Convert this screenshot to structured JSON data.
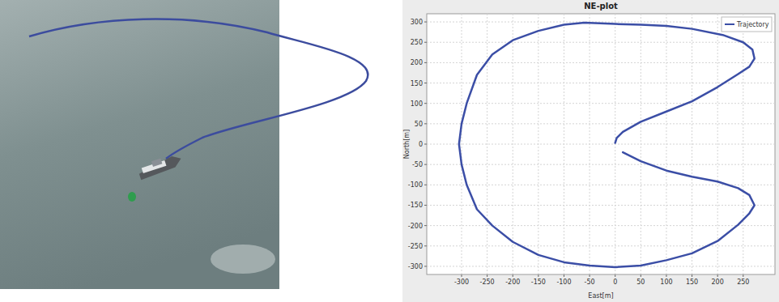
{
  "chart_data": {
    "type": "line",
    "title": "NE-plot",
    "x_label": "East[m]",
    "y_label": "North[m]",
    "x": [
      0,
      3,
      15,
      50,
      100,
      150,
      200,
      240,
      262,
      272,
      268,
      250,
      210,
      150,
      100,
      50,
      0,
      -60,
      -100,
      -150,
      -200,
      -240,
      -270,
      -290,
      -300,
      -305,
      -300,
      -290,
      -270,
      -240,
      -200,
      -150,
      -100,
      -50,
      0,
      50,
      100,
      150,
      200,
      240,
      262,
      272,
      262,
      240,
      200,
      150,
      100,
      50,
      15
    ],
    "series": [
      {
        "name": "Trajectory",
        "color": "#3b4ea6",
        "values": [
          3,
          15,
          30,
          55,
          80,
          105,
          140,
          172,
          190,
          210,
          232,
          250,
          268,
          283,
          290,
          293,
          295,
          298,
          293,
          278,
          255,
          220,
          170,
          100,
          50,
          0,
          -50,
          -100,
          -160,
          -200,
          -240,
          -272,
          -290,
          -298,
          -302,
          -298,
          -285,
          -268,
          -238,
          -198,
          -170,
          -150,
          -125,
          -108,
          -92,
          -80,
          -65,
          -42,
          -20
        ]
      }
    ],
    "xlim": [
      -368,
      312
    ],
    "ylim": [
      -320,
      320
    ],
    "xticks": [
      -300,
      -250,
      -200,
      -150,
      -100,
      -50,
      0,
      50,
      100,
      150,
      200,
      250
    ],
    "yticks": [
      -300,
      -250,
      -200,
      -150,
      -100,
      -50,
      0,
      50,
      100,
      150,
      200,
      250,
      300
    ],
    "grid": true,
    "legend": "upper right"
  }
}
